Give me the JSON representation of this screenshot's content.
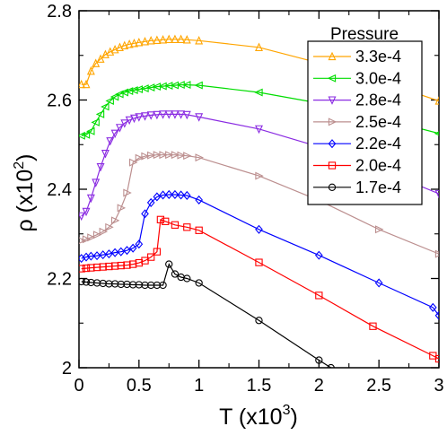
{
  "chart_data": {
    "type": "line",
    "xlabel": "T (x10",
    "xlabel_exp": "3",
    "ylabel": "ρ (x10",
    "ylabel_exp": "2",
    "xlim": [
      0,
      3
    ],
    "ylim": [
      2.0,
      2.8
    ],
    "xticks": [
      0,
      0.5,
      1,
      1.5,
      2,
      2.5,
      3
    ],
    "xtick_labels": [
      "0",
      "0.5",
      "1",
      "1.5",
      "2",
      "2.5",
      "3"
    ],
    "yticks": [
      2.0,
      2.2,
      2.4,
      2.6,
      2.8
    ],
    "ytick_labels": [
      "2",
      "2.2",
      "2.4",
      "2.6",
      "2.8"
    ],
    "grid": false,
    "legend": {
      "title": "Pressure",
      "placement": "top-right"
    },
    "series": [
      {
        "name": "3.3e-4",
        "color": "#FFA500",
        "marker": "triangle-up",
        "x": [
          0.02,
          0.06,
          0.1,
          0.14,
          0.18,
          0.22,
          0.26,
          0.3,
          0.34,
          0.38,
          0.42,
          0.46,
          0.5,
          0.55,
          0.6,
          0.65,
          0.7,
          0.75,
          0.8,
          0.85,
          0.9,
          1.0,
          1.5,
          2.0,
          2.5,
          3.0
        ],
        "y": [
          2.635,
          2.635,
          2.665,
          2.682,
          2.692,
          2.702,
          2.708,
          2.713,
          2.718,
          2.722,
          2.725,
          2.727,
          2.729,
          2.731,
          2.733,
          2.734,
          2.735,
          2.736,
          2.736,
          2.736,
          2.735,
          2.733,
          2.718,
          2.683,
          2.643,
          2.598
        ]
      },
      {
        "name": "3.0e-4",
        "color": "#00DD00",
        "marker": "triangle-left",
        "x": [
          0.02,
          0.06,
          0.1,
          0.14,
          0.18,
          0.22,
          0.26,
          0.3,
          0.34,
          0.38,
          0.42,
          0.46,
          0.5,
          0.55,
          0.6,
          0.65,
          0.7,
          0.75,
          0.8,
          0.85,
          0.9,
          1.0,
          1.5,
          2.0,
          2.5,
          3.0
        ],
        "y": [
          2.52,
          2.522,
          2.53,
          2.55,
          2.568,
          2.585,
          2.598,
          2.607,
          2.613,
          2.617,
          2.62,
          2.622,
          2.624,
          2.626,
          2.628,
          2.63,
          2.631,
          2.632,
          2.633,
          2.634,
          2.634,
          2.633,
          2.617,
          2.593,
          2.56,
          2.525
        ]
      },
      {
        "name": "2.8e-4",
        "color": "#8A2BE2",
        "marker": "triangle-down",
        "x": [
          0.02,
          0.06,
          0.1,
          0.14,
          0.18,
          0.22,
          0.26,
          0.3,
          0.34,
          0.38,
          0.42,
          0.46,
          0.5,
          0.55,
          0.6,
          0.65,
          0.7,
          0.75,
          0.8,
          0.85,
          0.9,
          1.0,
          1.5,
          2.0,
          2.5,
          3.0
        ],
        "y": [
          2.34,
          2.35,
          2.38,
          2.415,
          2.45,
          2.48,
          2.508,
          2.525,
          2.538,
          2.548,
          2.555,
          2.559,
          2.562,
          2.564,
          2.566,
          2.567,
          2.568,
          2.568,
          2.568,
          2.568,
          2.567,
          2.562,
          2.535,
          2.495,
          2.445,
          2.39
        ]
      },
      {
        "name": "2.5e-4",
        "color": "#BC8F8F",
        "marker": "triangle-right",
        "x": [
          0.02,
          0.06,
          0.1,
          0.15,
          0.2,
          0.25,
          0.3,
          0.35,
          0.4,
          0.45,
          0.5,
          0.55,
          0.6,
          0.65,
          0.7,
          0.75,
          0.8,
          0.85,
          0.9,
          1.0,
          1.5,
          2.0,
          2.5,
          3.0
        ],
        "y": [
          2.285,
          2.288,
          2.292,
          2.298,
          2.305,
          2.315,
          2.33,
          2.358,
          2.392,
          2.46,
          2.47,
          2.474,
          2.476,
          2.477,
          2.477,
          2.477,
          2.477,
          2.476,
          2.475,
          2.471,
          2.43,
          2.375,
          2.31,
          2.255
        ]
      },
      {
        "name": "2.2e-4",
        "color": "#0000FF",
        "marker": "diamond",
        "x": [
          0.02,
          0.06,
          0.1,
          0.15,
          0.2,
          0.25,
          0.3,
          0.35,
          0.4,
          0.45,
          0.5,
          0.55,
          0.6,
          0.65,
          0.7,
          0.75,
          0.8,
          0.85,
          0.9,
          1.0,
          1.5,
          2.0,
          2.5,
          2.95,
          3.0
        ],
        "y": [
          2.245,
          2.248,
          2.25,
          2.251,
          2.253,
          2.255,
          2.258,
          2.26,
          2.263,
          2.268,
          2.277,
          2.345,
          2.37,
          2.383,
          2.387,
          2.388,
          2.388,
          2.387,
          2.386,
          2.376,
          2.31,
          2.252,
          2.19,
          2.135,
          2.117
        ]
      },
      {
        "name": "2.0e-4",
        "color": "#FF0000",
        "marker": "square",
        "x": [
          0.02,
          0.06,
          0.1,
          0.15,
          0.2,
          0.25,
          0.3,
          0.35,
          0.4,
          0.45,
          0.5,
          0.55,
          0.6,
          0.65,
          0.68,
          0.72,
          0.8,
          0.9,
          1.0,
          1.5,
          2.0,
          2.45,
          2.95,
          3.0
        ],
        "y": [
          2.222,
          2.223,
          2.224,
          2.225,
          2.226,
          2.227,
          2.228,
          2.229,
          2.23,
          2.232,
          2.235,
          2.24,
          2.248,
          2.26,
          2.332,
          2.328,
          2.32,
          2.315,
          2.308,
          2.236,
          2.162,
          2.093,
          2.027,
          2.02
        ]
      },
      {
        "name": "1.7e-4",
        "color": "#000000",
        "marker": "circle",
        "x": [
          0.02,
          0.06,
          0.1,
          0.15,
          0.2,
          0.25,
          0.3,
          0.35,
          0.4,
          0.45,
          0.5,
          0.55,
          0.6,
          0.65,
          0.7,
          0.75,
          0.8,
          0.85,
          0.9,
          1.0,
          1.5,
          2.0,
          2.1
        ],
        "y": [
          2.193,
          2.192,
          2.191,
          2.19,
          2.189,
          2.188,
          2.188,
          2.187,
          2.187,
          2.186,
          2.186,
          2.185,
          2.185,
          2.185,
          2.185,
          2.232,
          2.21,
          2.203,
          2.2,
          2.19,
          2.106,
          2.017,
          2.0
        ]
      }
    ]
  }
}
